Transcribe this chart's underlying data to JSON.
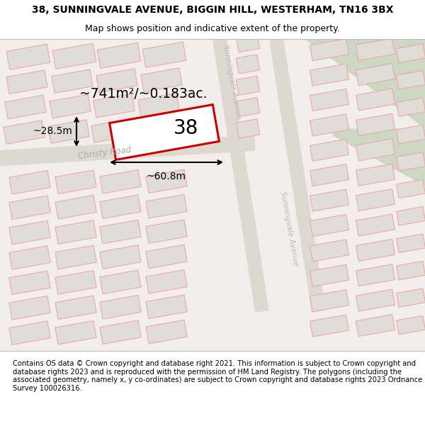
{
  "title_line1": "38, SUNNINGVALE AVENUE, BIGGIN HILL, WESTERHAM, TN16 3BX",
  "title_line2": "Map shows position and indicative extent of the property.",
  "footer_text": "Contains OS data © Crown copyright and database right 2021. This information is subject to Crown copyright and database rights 2023 and is reproduced with the permission of HM Land Registry. The polygons (including the associated geometry, namely x, y co-ordinates) are subject to Crown copyright and database rights 2023 Ordnance Survey 100026316.",
  "area_label": "~741m²/~0.183ac.",
  "width_label": "~60.8m",
  "height_label": "~28.5m",
  "plot_number": "38",
  "bg_color": "#f2eeeb",
  "plot_outline_color": "#cc0000",
  "block_fill": "#e0dcd8",
  "block_outline": "#f0a0a0",
  "green_fill": "#ccd8c4",
  "road_fill": "#ddd8d0",
  "christy_road_label": "Christy Road",
  "sunningvale_label_top": "Sunningvale Avenue",
  "sunningvale_label_bottom": "Sunningvale Avenue"
}
